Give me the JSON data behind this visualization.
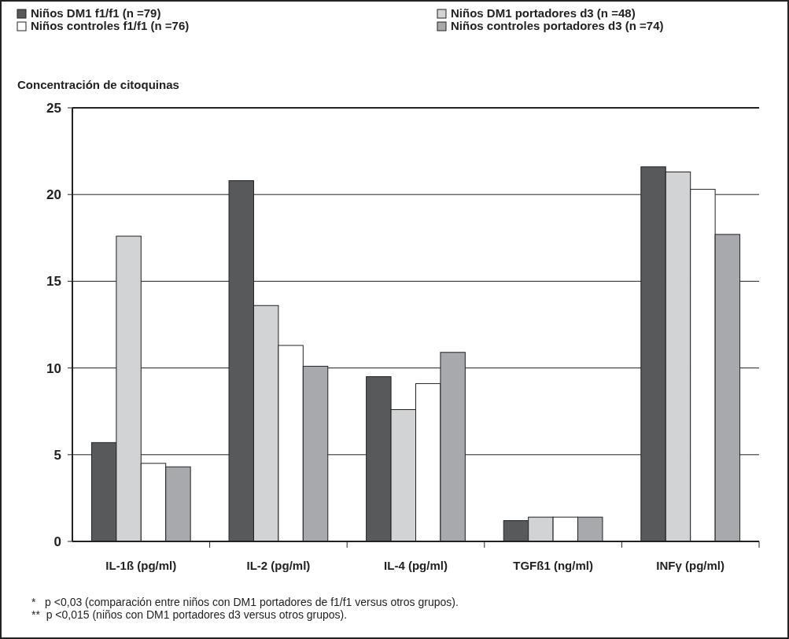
{
  "chart_data": {
    "type": "bar",
    "ylabel": "Concentración de citoquinas",
    "categories": [
      "IL-1ß (pg/ml)",
      "IL-2 (pg/ml)",
      "IL-4 (pg/ml)",
      "TGFß1 (ng/ml)",
      "INFγ (pg/ml)"
    ],
    "series": [
      {
        "name": "Niños DM1 f1/f1 (n =79)",
        "color": "#58595b",
        "values": [
          5.7,
          20.8,
          9.5,
          1.2,
          21.6
        ]
      },
      {
        "name": "Niños DM1 portadores d3 (n =48)",
        "color": "#d1d3d4",
        "values": [
          17.6,
          13.6,
          7.6,
          1.4,
          21.3
        ]
      },
      {
        "name": "Niños controles f1/f1 (n =76)",
        "color": "#ffffff",
        "values": [
          4.5,
          11.3,
          9.1,
          1.4,
          20.3
        ]
      },
      {
        "name": "Niños controles portadores d3 (n =74)",
        "color": "#a7a9ac",
        "values": [
          4.3,
          10.1,
          10.9,
          1.4,
          17.7
        ]
      }
    ],
    "ylim": [
      0,
      25
    ],
    "yticks": [
      0,
      5,
      10,
      15,
      20,
      25
    ],
    "grid": "y",
    "legend": "top",
    "annotations": [
      "*   p <0,03 (comparación entre niños con DM1 portadores de f1/f1 versus otros grupos).",
      "**  p <0,015 (niños con DM1 portadores d3 versus otros grupos)."
    ]
  }
}
